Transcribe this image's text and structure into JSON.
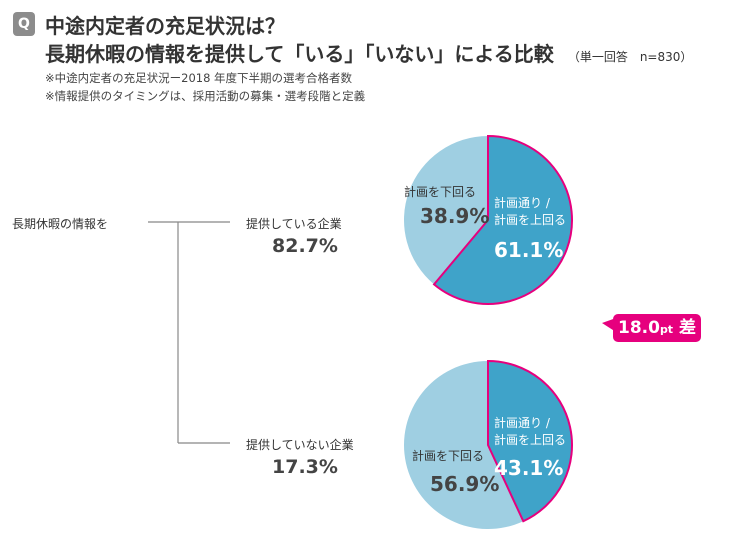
{
  "header": {
    "badge": "Q",
    "title1": "中途内定者の充足状況は？",
    "title2": "長期休暇の情報を提供して「いる」「いない」による比較",
    "meta": "（単一回答　n=830）",
    "note1": "※中途内定者の充足状況ー2018 年度下半期の選考合格者数",
    "note2": "※情報提供のタイミングは、採用活動の募集・選考段階と定義"
  },
  "root_label": "長期休暇の情報を",
  "difference": {
    "value": "18.0",
    "unit": "pt",
    "suffix": "差",
    "color": "#e6007e"
  },
  "colors": {
    "above": "#3fa3c9",
    "below": "#9fcfe2",
    "highlight": "#e6007e"
  },
  "chart_data": [
    {
      "type": "pie",
      "group": "提供している企業",
      "group_share": "82.7%",
      "slices": [
        {
          "label": "計画通り／計画を上回る",
          "label_line1": "計画通り /",
          "label_line2": "計画を上回る",
          "value": 61.1,
          "text": "61.1%"
        },
        {
          "label": "計画を下回る",
          "value": 38.9,
          "text": "38.9%"
        }
      ]
    },
    {
      "type": "pie",
      "group": "提供していない企業",
      "group_share": "17.3%",
      "slices": [
        {
          "label": "計画通り／計画を上回る",
          "label_line1": "計画通り /",
          "label_line2": "計画を上回る",
          "value": 43.1,
          "text": "43.1%"
        },
        {
          "label": "計画を下回る",
          "value": 56.9,
          "text": "56.9%"
        }
      ]
    }
  ]
}
